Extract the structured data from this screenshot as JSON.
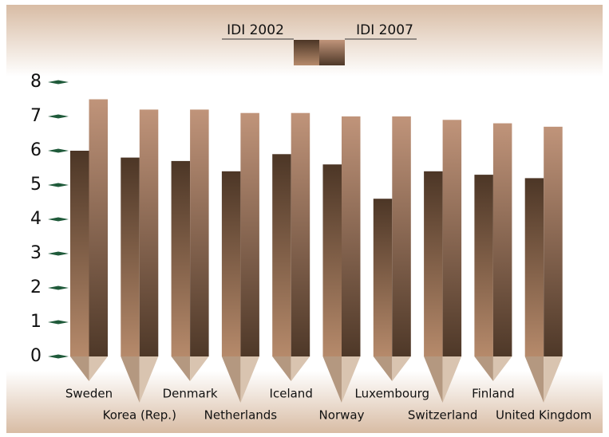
{
  "chart_data": {
    "type": "bar",
    "categories": [
      "Sweden",
      "Korea (Rep.)",
      "Denmark",
      "Netherlands",
      "Iceland",
      "Norway",
      "Luxembourg",
      "Switzerland",
      "Finland",
      "United Kingdom"
    ],
    "series": [
      {
        "name": "IDI 2002",
        "color": "#5e4433",
        "values": [
          6.0,
          5.8,
          5.7,
          5.4,
          5.9,
          5.6,
          4.6,
          5.4,
          5.3,
          5.2
        ]
      },
      {
        "name": "IDI 2007",
        "color": "#b98b6b",
        "values": [
          7.5,
          7.2,
          7.2,
          7.1,
          7.1,
          7.0,
          7.0,
          6.9,
          6.8,
          6.7
        ]
      }
    ],
    "ylim": [
      0,
      8
    ],
    "yticks": [
      0,
      1,
      2,
      3,
      4,
      5,
      6,
      7,
      8
    ],
    "tick_color": "#1f5a3a"
  }
}
